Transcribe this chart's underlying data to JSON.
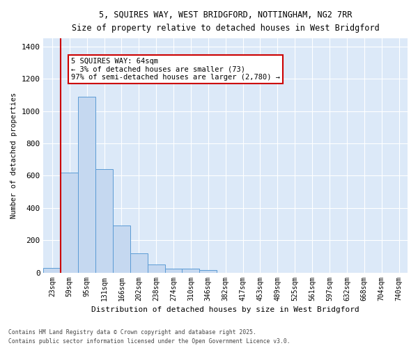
{
  "title_line1": "5, SQUIRES WAY, WEST BRIDGFORD, NOTTINGHAM, NG2 7RR",
  "title_line2": "Size of property relative to detached houses in West Bridgford",
  "xlabel": "Distribution of detached houses by size in West Bridgford",
  "ylabel": "Number of detached properties",
  "bins": [
    "23sqm",
    "59sqm",
    "95sqm",
    "131sqm",
    "166sqm",
    "202sqm",
    "238sqm",
    "274sqm",
    "310sqm",
    "346sqm",
    "382sqm",
    "417sqm",
    "453sqm",
    "489sqm",
    "525sqm",
    "561sqm",
    "597sqm",
    "632sqm",
    "668sqm",
    "704sqm",
    "740sqm"
  ],
  "values": [
    30,
    620,
    1090,
    640,
    290,
    120,
    50,
    25,
    25,
    15,
    0,
    0,
    0,
    0,
    0,
    0,
    0,
    0,
    0,
    0,
    0
  ],
  "bar_color": "#c5d8f0",
  "bar_edge_color": "#5b9bd5",
  "vline_index": 1,
  "vline_color": "#cc0000",
  "annotation_text": "5 SQUIRES WAY: 64sqm\n← 3% of detached houses are smaller (73)\n97% of semi-detached houses are larger (2,780) →",
  "annotation_box_color": "#ffffff",
  "annotation_box_edge": "#cc0000",
  "ylim": [
    0,
    1450
  ],
  "yticks": [
    0,
    200,
    400,
    600,
    800,
    1000,
    1200,
    1400
  ],
  "plot_bg_color": "#dce9f8",
  "fig_bg_color": "#ffffff",
  "grid_color": "#ffffff",
  "footer_line1": "Contains HM Land Registry data © Crown copyright and database right 2025.",
  "footer_line2": "Contains public sector information licensed under the Open Government Licence v3.0."
}
